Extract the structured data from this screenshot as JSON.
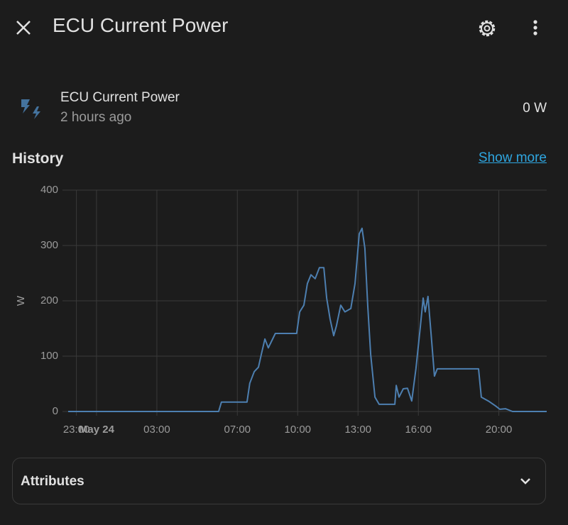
{
  "header": {
    "title": "ECU Current Power"
  },
  "entity": {
    "name": "ECU Current Power",
    "last_changed": "2 hours ago",
    "state": "0 W"
  },
  "history": {
    "title": "History",
    "show_more": "Show more",
    "chart": {
      "type": "line",
      "y_label": "W",
      "x": [
        -1.41,
        6.07,
        6.21,
        7.48,
        7.62,
        7.84,
        8.05,
        8.19,
        8.37,
        8.54,
        8.89,
        9.95,
        10.1,
        10.31,
        10.48,
        10.66,
        10.87,
        11.08,
        11.3,
        11.44,
        11.61,
        11.79,
        11.93,
        12.14,
        12.35,
        12.64,
        12.85,
        13.06,
        13.2,
        13.34,
        13.48,
        13.63,
        13.84,
        14.05,
        14.83,
        14.9,
        15.04,
        15.25,
        15.46,
        15.67,
        15.88,
        16.1,
        16.24,
        16.34,
        16.48,
        16.63,
        16.8,
        16.94,
        18.99,
        19.13,
        19.48,
        19.84,
        20.05,
        20.33,
        20.68,
        22.38
      ],
      "series": [
        {
          "color": "#4d7fb0",
          "values": [
            0,
            0,
            17,
            17,
            51,
            72,
            80,
            103,
            131,
            115,
            141,
            141,
            180,
            192,
            231,
            247,
            240,
            260,
            260,
            205,
            167,
            137,
            155,
            192,
            180,
            186,
            231,
            321,
            331,
            295,
            192,
            103,
            26,
            13,
            13,
            47,
            26,
            41,
            42,
            19,
            77,
            154,
            205,
            180,
            208,
            141,
            64,
            77,
            77,
            26,
            19,
            10,
            4,
            5,
            0,
            0
          ]
        }
      ],
      "xlim": [
        -1.41,
        22.38
      ],
      "xticks": [
        {
          "value": -1,
          "label": "23:00"
        },
        {
          "value": 0,
          "label": "May 24"
        },
        {
          "value": 3,
          "label": "03:00"
        },
        {
          "value": 7,
          "label": "07:00"
        },
        {
          "value": 10,
          "label": "10:00"
        },
        {
          "value": 13,
          "label": "13:00"
        },
        {
          "value": 16,
          "label": "16:00"
        },
        {
          "value": 20,
          "label": "20:00"
        }
      ],
      "ylim": [
        0,
        400
      ],
      "yticks": [
        0,
        100,
        200,
        300,
        400
      ],
      "grid": true
    }
  },
  "attributes": {
    "title": "Attributes"
  }
}
